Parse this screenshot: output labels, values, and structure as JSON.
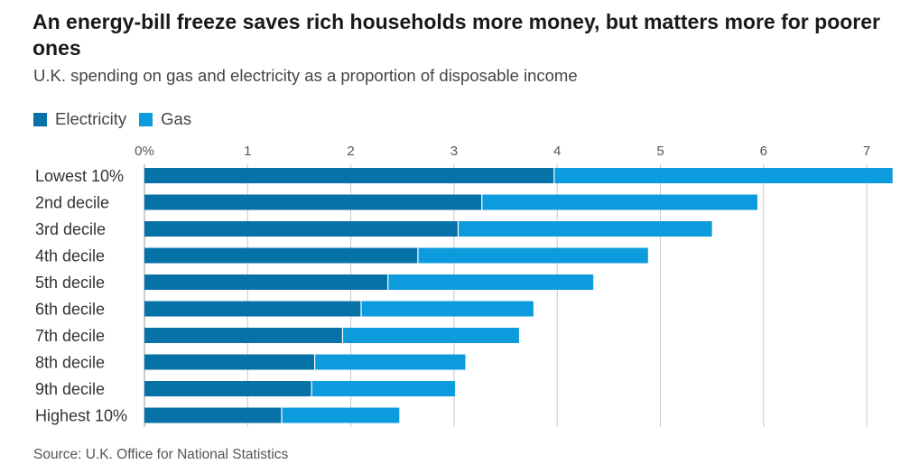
{
  "title": "An energy-bill freeze saves rich households more money, but matters more for poorer ones",
  "subtitle": "U.K. spending on gas and electricity as a proportion of disposable income",
  "source": "Source: U.K. Office for National Statistics",
  "colors": {
    "electricity": "#0672a8",
    "gas": "#0c9bdd",
    "grid": "#c8c8c8",
    "axis_text": "#555555"
  },
  "chart_data": {
    "type": "bar",
    "orientation": "horizontal",
    "stacked": true,
    "categories": [
      "Lowest 10%",
      "2nd decile",
      "3rd decile",
      "4th decile",
      "5th decile",
      "6th decile",
      "7th decile",
      "8th decile",
      "9th decile",
      "Highest 10%"
    ],
    "series": [
      {
        "name": "Electricity",
        "color": "#0672a8",
        "values": [
          3.97,
          3.27,
          3.04,
          2.65,
          2.36,
          2.1,
          1.92,
          1.65,
          1.62,
          1.33
        ]
      },
      {
        "name": "Gas",
        "color": "#0c9bdd",
        "values": [
          3.28,
          2.67,
          2.46,
          2.23,
          1.99,
          1.67,
          1.71,
          1.46,
          1.39,
          1.14
        ]
      }
    ],
    "x_ticks": [
      0,
      1,
      2,
      3,
      4,
      5,
      6,
      7
    ],
    "x_tick_labels": [
      "0%",
      "1",
      "2",
      "3",
      "4",
      "5",
      "6",
      "7"
    ],
    "xlim": [
      0,
      7.25
    ],
    "legend": "top-left",
    "grid": true
  }
}
